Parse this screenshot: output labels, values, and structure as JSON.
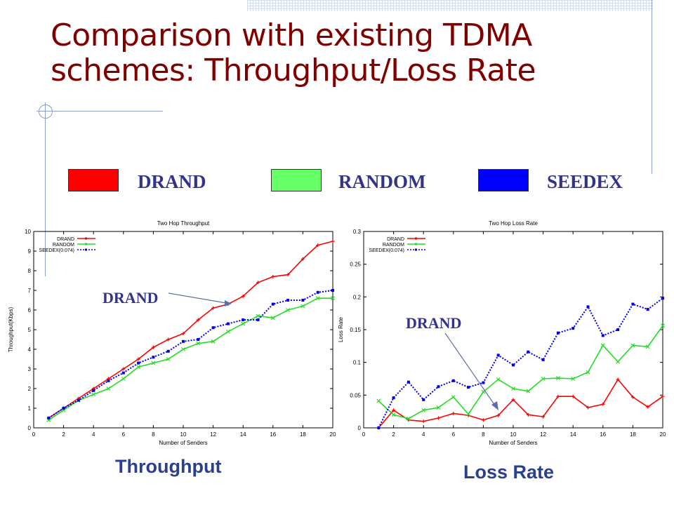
{
  "slide": {
    "title_line1": "Comparison with existing TDMA",
    "title_line2": "schemes: Throughput/Loss Rate"
  },
  "legend": [
    {
      "label": "DRAND",
      "color": "#ff0000"
    },
    {
      "label": "RANDOM",
      "color": "#66ff66"
    },
    {
      "label": "SEEDEX",
      "color": "#0000ff"
    }
  ],
  "colors": {
    "title": "#800000",
    "annotation": "#33338a",
    "caption": "#2b3f8f"
  },
  "captions": {
    "left": "Throughput",
    "right": "Loss Rate"
  },
  "annotations": {
    "left": "DRAND",
    "right": "DRAND"
  },
  "chart_data": [
    {
      "type": "line",
      "title": "Two Hop Throughput",
      "xlabel": "Number of Senders",
      "ylabel": "Throughput(Kbps)",
      "xlim": [
        0,
        20
      ],
      "ylim": [
        0,
        10
      ],
      "xticks": [
        0,
        2,
        4,
        6,
        8,
        10,
        12,
        14,
        16,
        18,
        20
      ],
      "yticks": [
        0,
        1,
        2,
        3,
        4,
        5,
        6,
        7,
        8,
        9,
        10
      ],
      "legend_position": "top-left",
      "x": [
        1,
        2,
        3,
        4,
        5,
        6,
        7,
        8,
        9,
        10,
        11,
        12,
        13,
        14,
        15,
        16,
        17,
        18,
        19,
        20
      ],
      "series": [
        {
          "name": "DRAND",
          "color": "#ff0000",
          "style": "solid",
          "values": [
            0.5,
            1.0,
            1.5,
            2.0,
            2.5,
            3.0,
            3.5,
            4.1,
            4.5,
            4.8,
            5.5,
            6.1,
            6.3,
            6.7,
            7.4,
            7.7,
            7.8,
            8.6,
            9.3,
            9.5
          ]
        },
        {
          "name": "RANDOM",
          "color": "#22dd22",
          "style": "solid",
          "values": [
            0.4,
            0.9,
            1.4,
            1.7,
            2.0,
            2.5,
            3.1,
            3.3,
            3.5,
            4.0,
            4.3,
            4.4,
            4.9,
            5.3,
            5.7,
            5.6,
            6.0,
            6.2,
            6.6,
            6.6
          ]
        },
        {
          "name": "SEEDEX(0.074)",
          "color": "#0000ee",
          "style": "dotted",
          "values": [
            0.5,
            1.0,
            1.4,
            1.9,
            2.4,
            2.8,
            3.3,
            3.6,
            3.9,
            4.4,
            4.5,
            5.1,
            5.3,
            5.5,
            5.5,
            6.3,
            6.5,
            6.5,
            6.9,
            7.0
          ]
        }
      ]
    },
    {
      "type": "line",
      "title": "Two Hop Loss Rate",
      "xlabel": "Number of Senders",
      "ylabel": "Loss Rate",
      "xlim": [
        0,
        20
      ],
      "ylim": [
        0,
        0.3
      ],
      "xticks": [
        0,
        2,
        4,
        6,
        8,
        10,
        12,
        14,
        16,
        18,
        20
      ],
      "yticks": [
        0,
        0.05,
        0.1,
        0.15,
        0.2,
        0.25,
        0.3
      ],
      "ytick_labels": [
        "0",
        "0.05",
        "0.1",
        "0.15",
        "0.2",
        "0.25",
        "0.3"
      ],
      "legend_position": "top-left",
      "x": [
        1,
        2,
        3,
        4,
        5,
        6,
        7,
        8,
        9,
        10,
        11,
        12,
        13,
        14,
        15,
        16,
        17,
        18,
        19,
        20
      ],
      "series": [
        {
          "name": "DRAND",
          "color": "#ff0000",
          "style": "solid",
          "values": [
            0.0,
            0.027,
            0.012,
            0.01,
            0.015,
            0.022,
            0.019,
            0.012,
            0.019,
            0.043,
            0.02,
            0.017,
            0.048,
            0.048,
            0.031,
            0.036,
            0.074,
            0.047,
            0.032,
            0.048
          ]
        },
        {
          "name": "RANDOM",
          "color": "#22dd22",
          "style": "solid",
          "values": [
            0.041,
            0.02,
            0.014,
            0.027,
            0.031,
            0.047,
            0.021,
            0.055,
            0.074,
            0.06,
            0.056,
            0.075,
            0.076,
            0.075,
            0.085,
            0.126,
            0.101,
            0.126,
            0.124,
            0.156
          ]
        },
        {
          "name": "SEEDEX(0.074)",
          "color": "#0000ee",
          "style": "dotted",
          "values": [
            0.0,
            0.046,
            0.07,
            0.043,
            0.063,
            0.072,
            0.062,
            0.069,
            0.111,
            0.096,
            0.116,
            0.104,
            0.145,
            0.152,
            0.185,
            0.141,
            0.15,
            0.189,
            0.181,
            0.198
          ]
        }
      ]
    }
  ]
}
